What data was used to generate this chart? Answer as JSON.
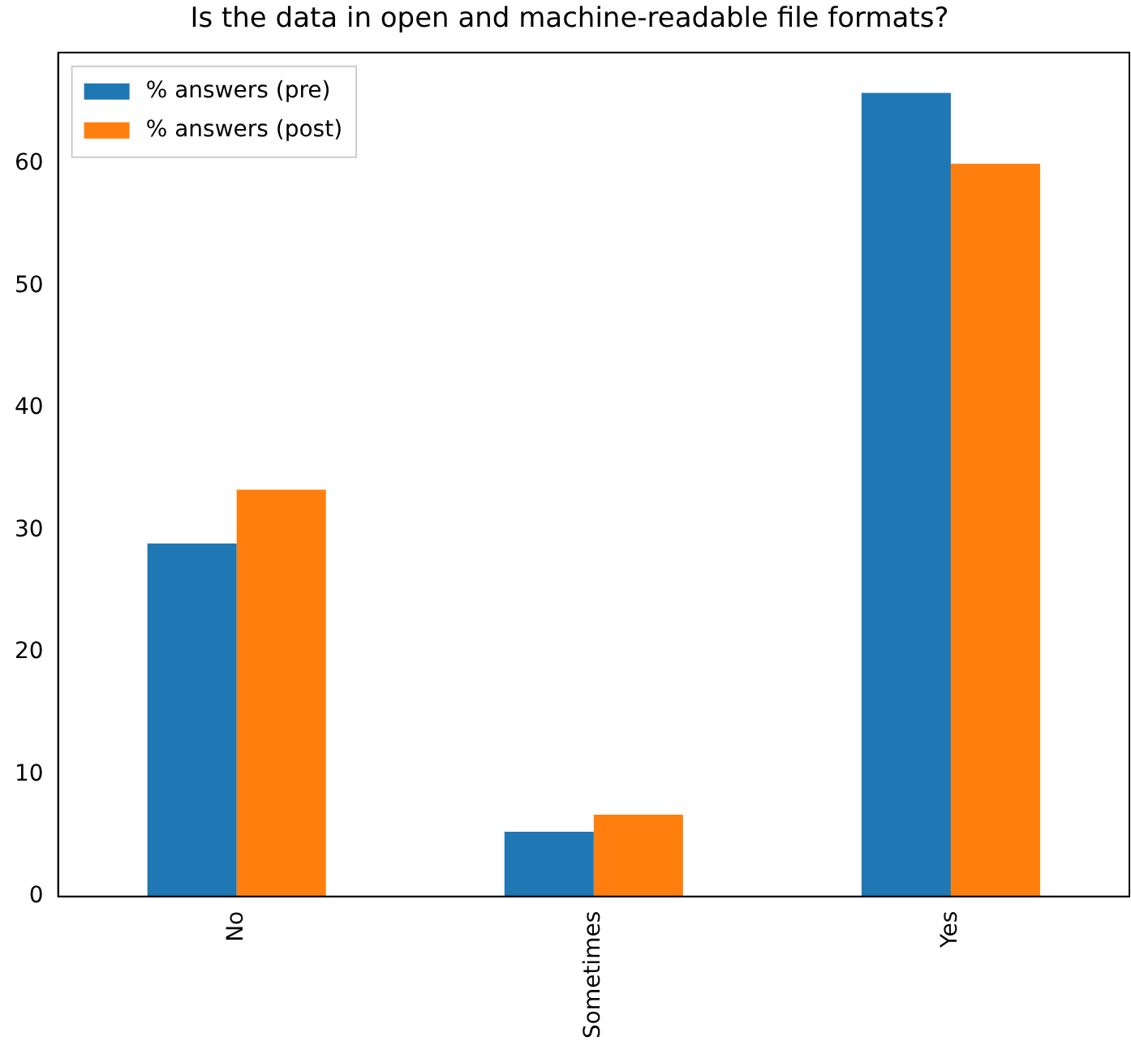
{
  "chart_data": {
    "type": "bar",
    "title": "Is the data in open and machine-readable file formats?",
    "categories": [
      "No",
      "Sometimes",
      "Yes"
    ],
    "series": [
      {
        "name": "% answers (pre)",
        "color": "#1f77b4",
        "values": [
          28.9,
          5.3,
          65.8
        ]
      },
      {
        "name": "% answers (post)",
        "color": "#ff7f0e",
        "values": [
          33.3,
          6.7,
          60.0
        ]
      }
    ],
    "ylim": [
      0,
      69.1
    ],
    "yticks": [
      0,
      10,
      20,
      30,
      40,
      50,
      60
    ],
    "grid": false,
    "legend": "top left"
  }
}
